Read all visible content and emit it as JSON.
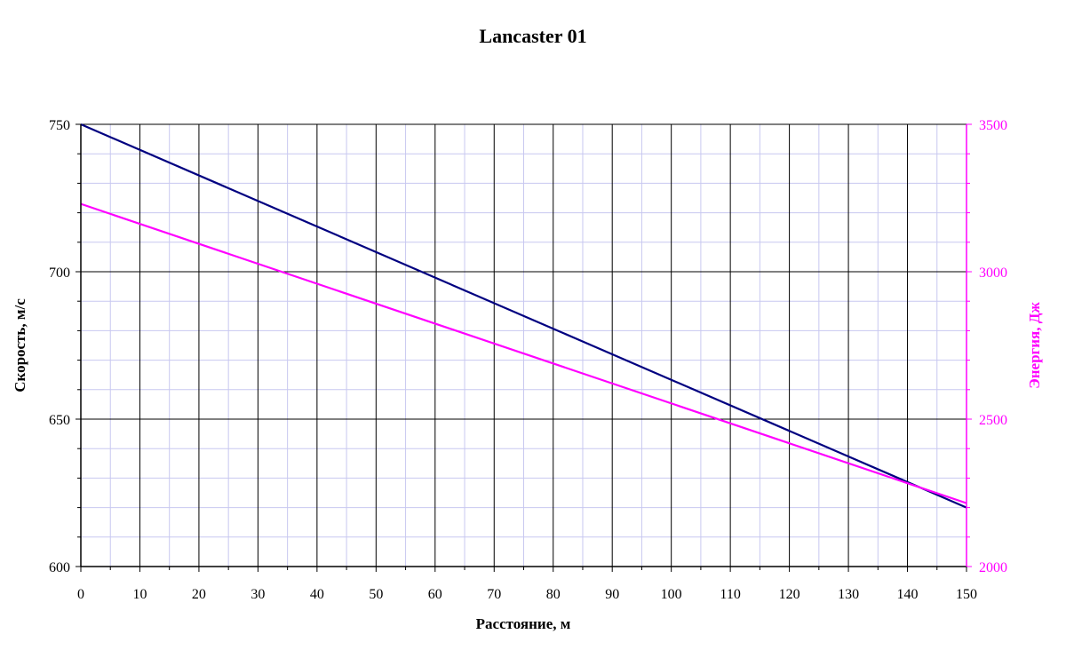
{
  "chart_data": {
    "type": "line",
    "title": "Lancaster 01",
    "xlabel": "Расстояние, м",
    "ylabel_left": "Скорость, м/с",
    "ylabel_right": "Энергия, Дж",
    "x_ticks": [
      0,
      10,
      20,
      30,
      40,
      50,
      60,
      70,
      80,
      90,
      100,
      110,
      120,
      130,
      140,
      150
    ],
    "y_left_ticks": [
      600,
      650,
      700,
      750
    ],
    "y_right_ticks": [
      2000,
      2500,
      3000,
      3500
    ],
    "xlim": [
      0,
      150
    ],
    "ylim_left": [
      600,
      750
    ],
    "ylim_right": [
      2000,
      3500
    ],
    "grid": true,
    "colors": {
      "velocity": "#000080",
      "energy": "#ff00ff",
      "major_grid": "#000000",
      "minor_grid": "#c8c8f0",
      "axis": "#000000"
    },
    "series": [
      {
        "axis": "left",
        "x": [
          0,
          150
        ],
        "values": [
          750,
          620
        ]
      },
      {
        "axis": "right",
        "x": [
          0,
          150
        ],
        "values": [
          3230,
          2215
        ]
      }
    ]
  }
}
